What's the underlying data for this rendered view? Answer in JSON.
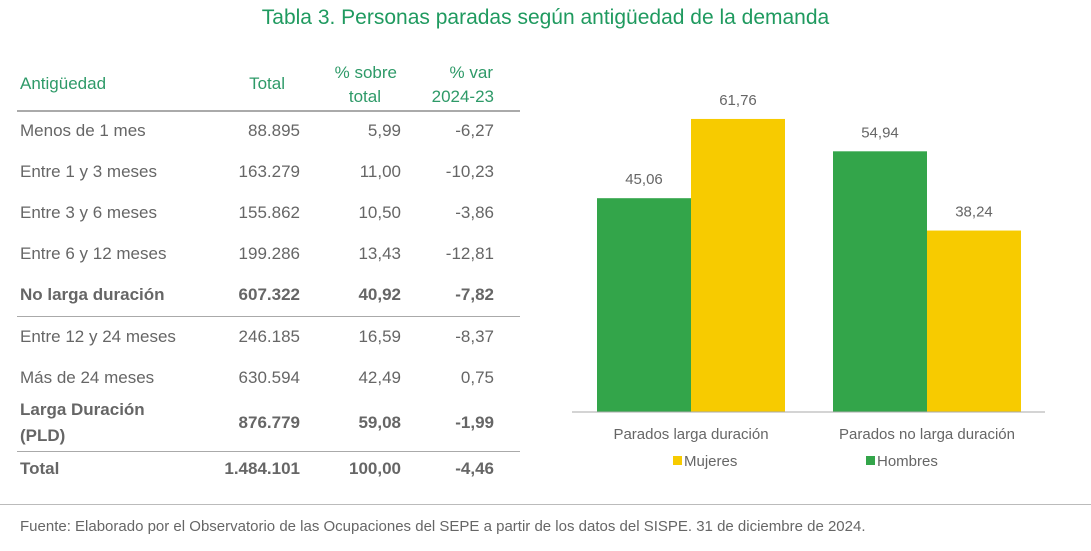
{
  "title": "Tabla 3. Personas paradas según antigüedad de la demanda",
  "table": {
    "headers": [
      "Antigüedad",
      "Total",
      "% sobre total",
      "% var 2024-23"
    ],
    "header_lines": {
      "c2a": "% sobre",
      "c2b": "total",
      "c3a": "% var",
      "c3b": "2024-23"
    },
    "rows": [
      {
        "label": "Menos de 1 mes",
        "total": "88.895",
        "pct": "5,99",
        "var": "-6,27",
        "bold": false
      },
      {
        "label": "Entre 1 y 3 meses",
        "total": "163.279",
        "pct": "11,00",
        "var": "-10,23",
        "bold": false
      },
      {
        "label": "Entre 3 y 6 meses",
        "total": "155.862",
        "pct": "10,50",
        "var": "-3,86",
        "bold": false
      },
      {
        "label": "Entre 6 y 12 meses",
        "total": "199.286",
        "pct": "13,43",
        "var": "-12,81",
        "bold": false
      },
      {
        "label": "No larga duración",
        "total": "607.322",
        "pct": "40,92",
        "var": "-7,82",
        "bold": true
      },
      {
        "label": "Entre 12 y 24 meses",
        "total": "246.185",
        "pct": "16,59",
        "var": "-8,37",
        "bold": false
      },
      {
        "label": "Más de 24 meses",
        "total": "630.594",
        "pct": "42,49",
        "var": "0,75",
        "bold": false
      },
      {
        "label": "Larga Duración (PLD)",
        "label_a": "Larga Duración",
        "label_b": "(PLD)",
        "total": "876.779",
        "pct": "59,08",
        "var": "-1,99",
        "bold": true
      },
      {
        "label": "Total",
        "total": "1.484.101",
        "pct": "100,00",
        "var": "-4,46",
        "bold": true
      }
    ]
  },
  "chart_data": {
    "type": "bar",
    "categories": [
      "Parados larga duración",
      "Parados no larga duración"
    ],
    "series": [
      {
        "name": "Hombres",
        "values": [
          45.06,
          54.94
        ],
        "labels": [
          "45,06",
          "54,94"
        ],
        "color": "#33a54a"
      },
      {
        "name": "Mujeres",
        "values": [
          61.76,
          38.24
        ],
        "labels": [
          "61,76",
          "38,24"
        ],
        "color": "#f7cb00"
      }
    ],
    "legend": [
      "Mujeres",
      "Hombres"
    ],
    "ylim": [
      0,
      65
    ]
  },
  "footer": "Fuente: Elaborado por el Observatorio de las Ocupaciones del SEPE a partir de los datos del SISPE. 31 de diciembre de 2024."
}
